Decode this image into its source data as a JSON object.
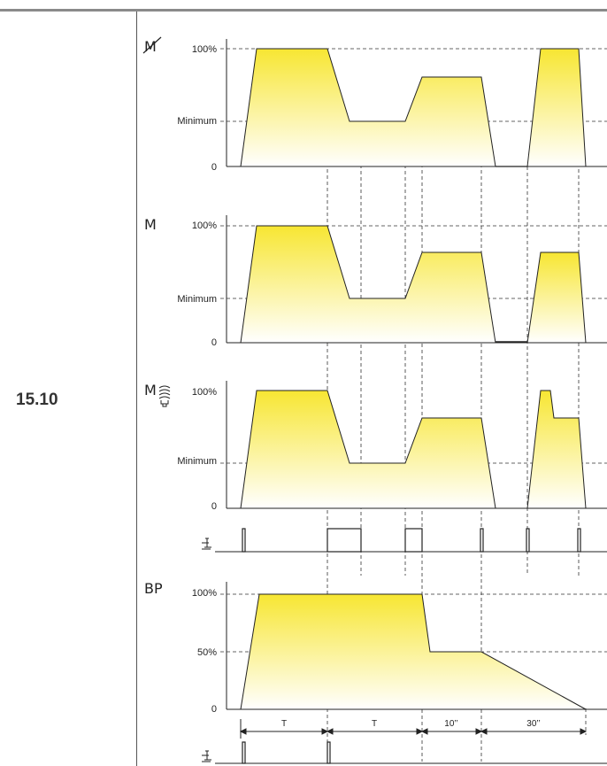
{
  "section": {
    "number": "15.10"
  },
  "colors": {
    "fill_top": "#f7e632",
    "fill_bottom": "#ffffff",
    "line": "#222222",
    "guide": "#333333"
  },
  "panels": [
    {
      "mode": "M",
      "mode_strike": true,
      "icon": "",
      "labels": {
        "top": "100%",
        "mid": "Minimum",
        "zero": "0"
      }
    },
    {
      "mode": "M",
      "mode_strike": false,
      "icon": "",
      "labels": {
        "top": "100%",
        "mid": "Minimum",
        "zero": "0"
      }
    },
    {
      "mode": "M",
      "mode_strike": false,
      "icon": "bulb-icon",
      "labels": {
        "top": "100%",
        "mid": "Minimum",
        "zero": "0"
      }
    },
    {
      "mode": "BP",
      "mode_strike": false,
      "icon": "",
      "labels": {
        "top": "100%",
        "mid": "50%",
        "zero": "0"
      }
    }
  ],
  "durations": [
    "T",
    "T",
    "10’’",
    "30’’"
  ],
  "icons": {
    "push_button": "push-button-icon"
  }
}
